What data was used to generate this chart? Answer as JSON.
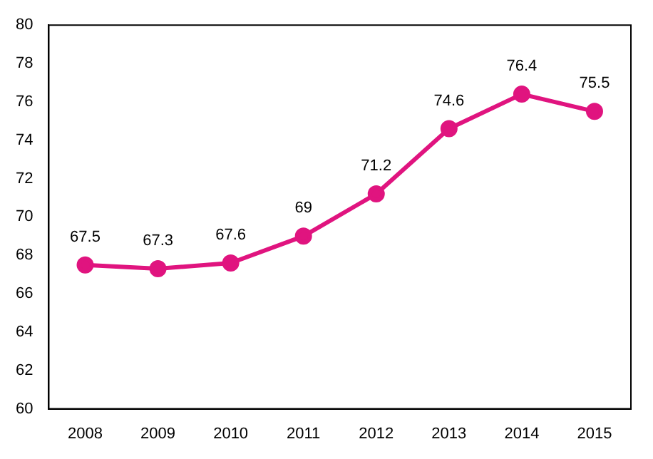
{
  "chart_data": {
    "type": "line",
    "categories": [
      "2008",
      "2009",
      "2010",
      "2011",
      "2012",
      "2013",
      "2014",
      "2015"
    ],
    "series": [
      {
        "color": "#e0147f",
        "values": [
          67.5,
          67.3,
          67.6,
          69,
          71.2,
          74.6,
          76.4,
          75.5
        ]
      }
    ],
    "ylim": [
      60,
      80
    ],
    "yticks": [
      60,
      62,
      64,
      66,
      68,
      70,
      72,
      74,
      76,
      78,
      80
    ],
    "grid": false,
    "legend": false,
    "marker": "circle",
    "line_style": "solid",
    "data_labels": true
  }
}
